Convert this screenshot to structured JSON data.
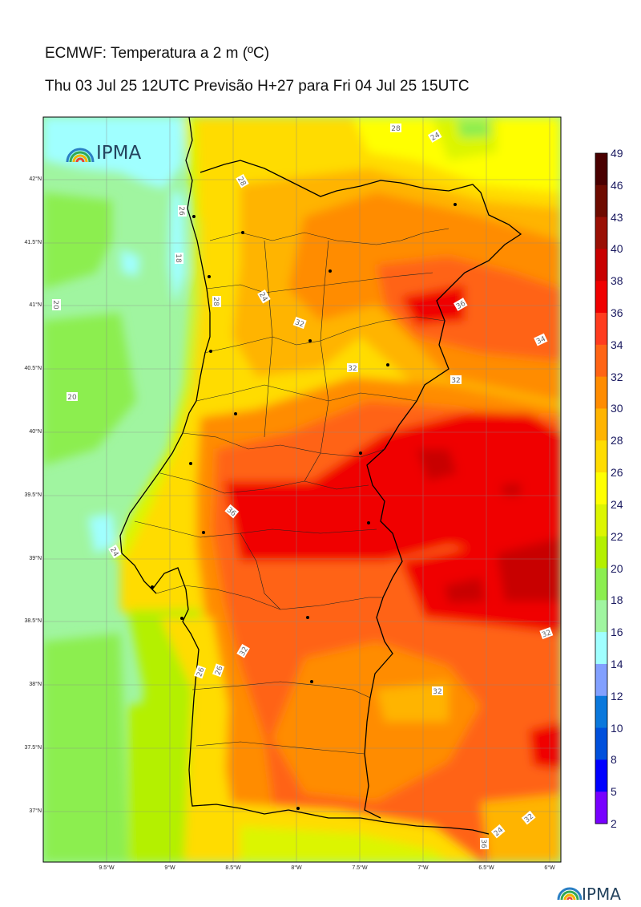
{
  "header": {
    "title": "ECMWF: Temperatura a 2 m (ºC)",
    "subtitle": "Thu 03 Jul 25 12UTC Previsão H+27 para Fri 04 Jul 25 15UTC"
  },
  "logo": {
    "text": "IPMA",
    "icon": "ipma-rainbow-icon"
  },
  "map": {
    "latitude_labels": [
      "42°N",
      "41.5°N",
      "41°N",
      "40.5°N",
      "40°N",
      "39.5°N",
      "39°N",
      "38.5°N",
      "38°N",
      "37.5°N",
      "37°N"
    ],
    "longitude_labels": [
      "9.5°W",
      "9°W",
      "8.5°W",
      "8°W",
      "7.5°W",
      "7°W",
      "6.5°W",
      "6°W"
    ],
    "contour_labels": [
      "28",
      "24",
      "28",
      "26",
      "28",
      "20",
      "18",
      "24",
      "32",
      "32",
      "36",
      "34",
      "32",
      "32",
      "20",
      "36",
      "24",
      "32",
      "26",
      "26",
      "32",
      "32",
      "36",
      "24",
      "28",
      "24"
    ]
  },
  "colorbar": {
    "labels": [
      "49",
      "46",
      "43",
      "40",
      "38",
      "36",
      "34",
      "32",
      "30",
      "28",
      "26",
      "24",
      "22",
      "20",
      "18",
      "16",
      "14",
      "12",
      "10",
      "8",
      "5",
      "2"
    ],
    "colors": [
      "#4a0000",
      "#6e0b00",
      "#9a1005",
      "#c80000",
      "#f00000",
      "#ff3c1e",
      "#ff6414",
      "#ff8c00",
      "#ffb400",
      "#ffdc00",
      "#ffff00",
      "#dcf500",
      "#b4f000",
      "#8cee50",
      "#a0f5a0",
      "#a0ffff",
      "#82a0ff",
      "#0a78dc",
      "#0050dc",
      "#0000ff",
      "#7800ff",
      "#dc00ff"
    ]
  }
}
